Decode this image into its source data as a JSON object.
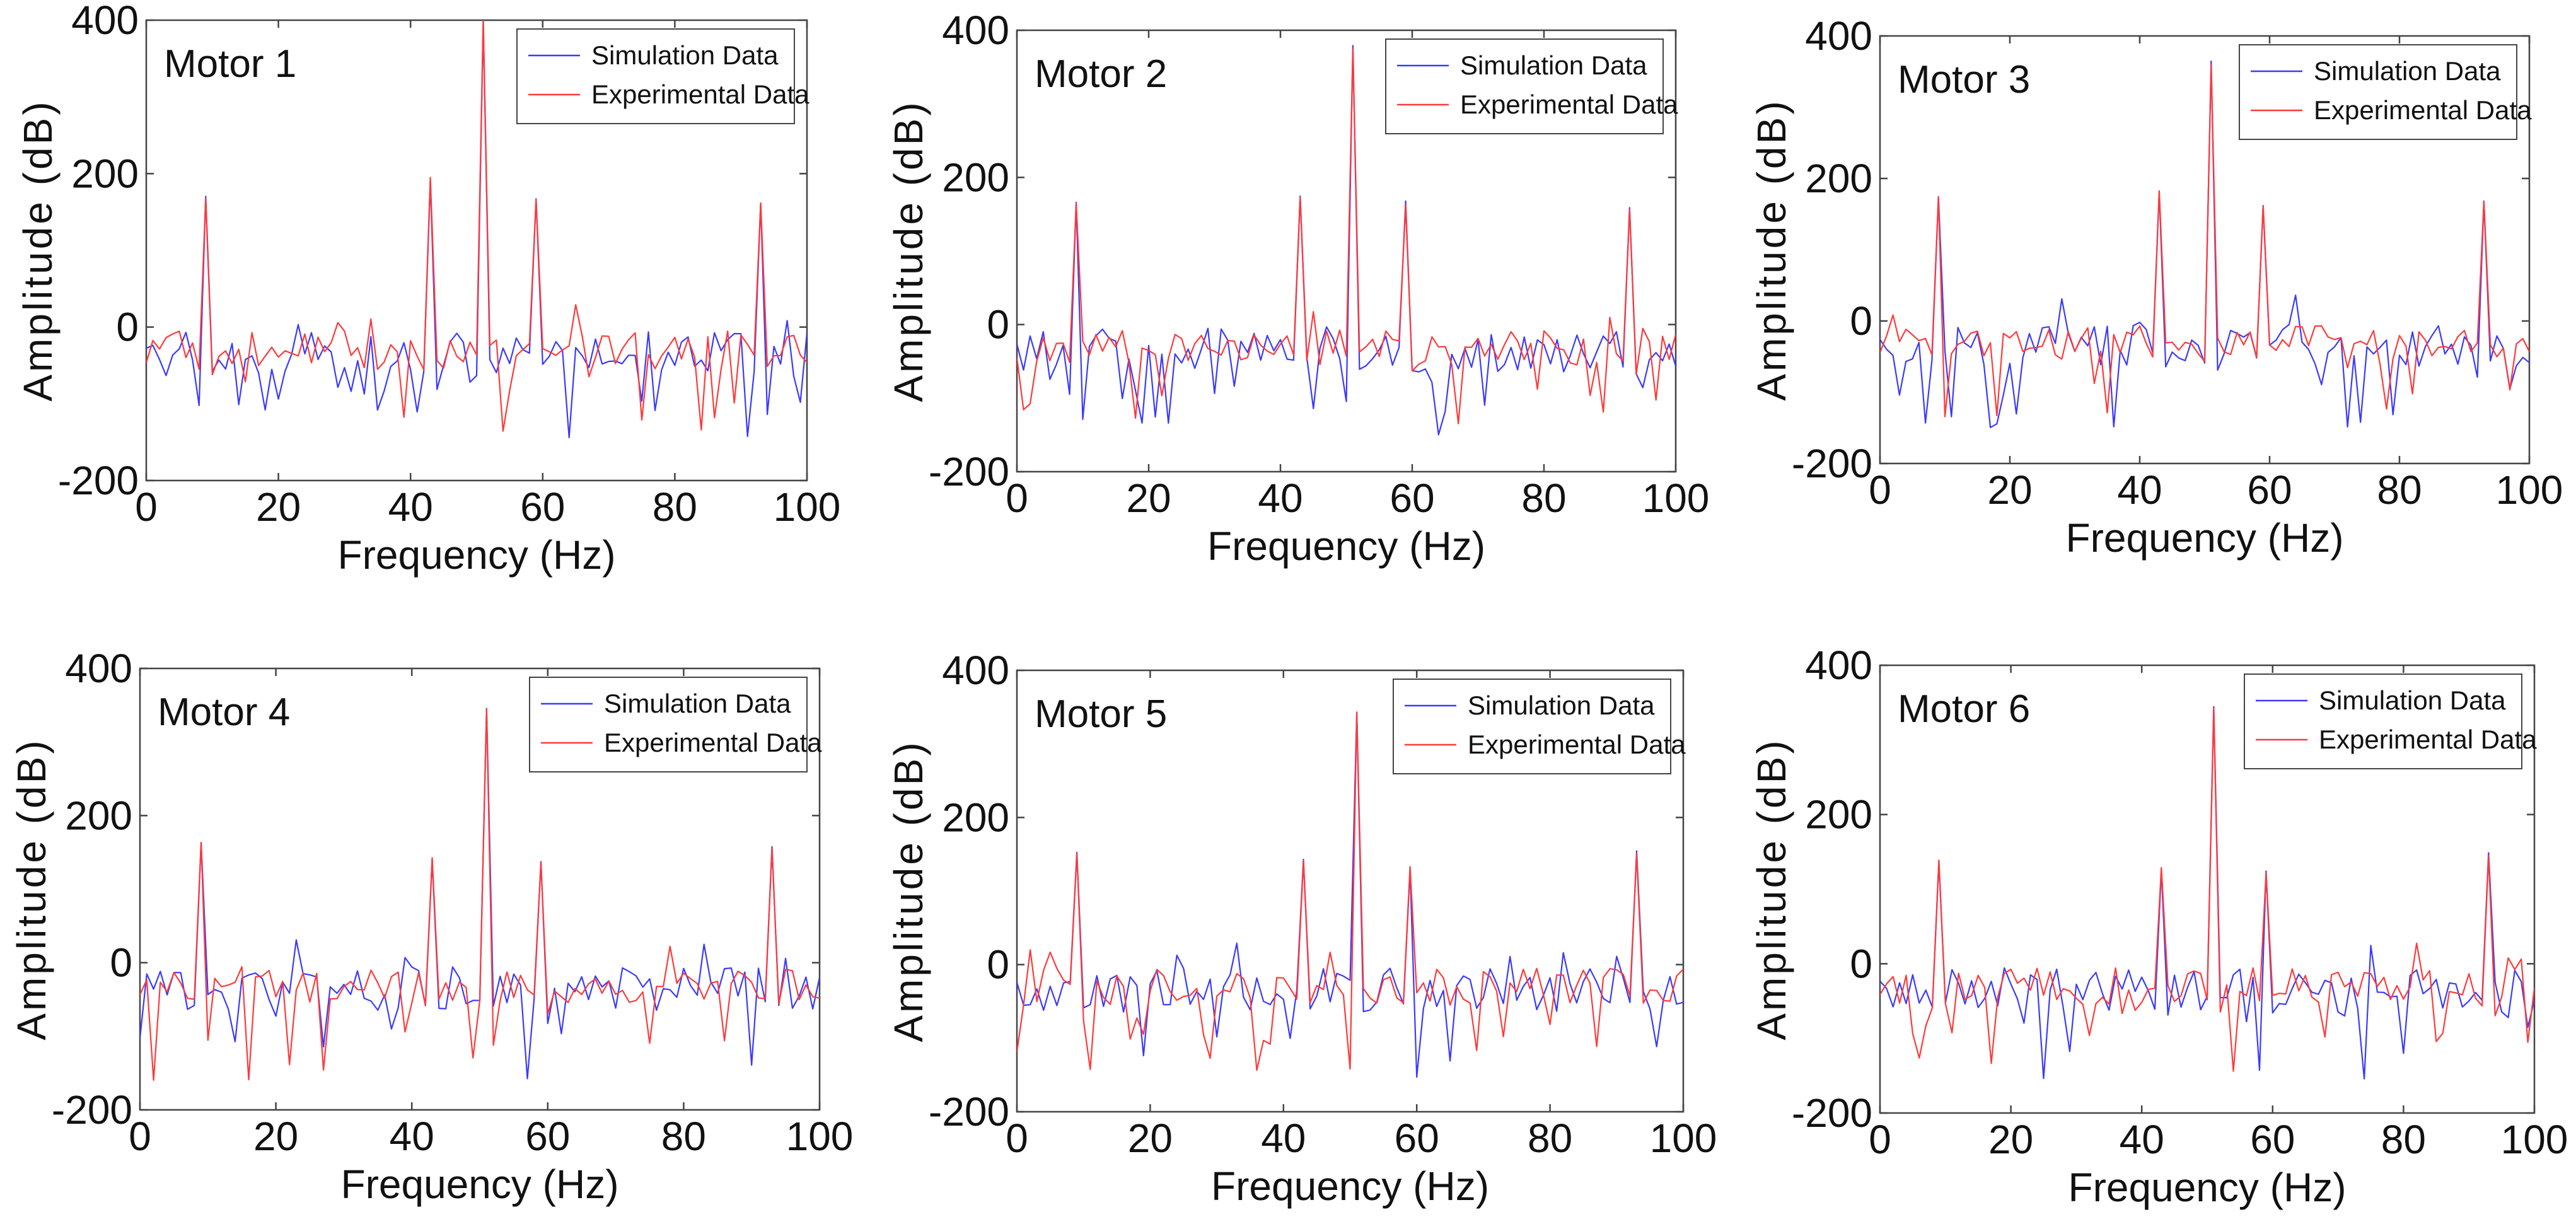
{
  "colors": {
    "simulation": "#3a3aff",
    "experimental": "#ff3a3a"
  },
  "chart_data": [
    {
      "type": "line",
      "title": "Motor 1",
      "xlabel": "Frequency (Hz)",
      "ylabel": "Amplitude (dB)",
      "xlim": [
        0,
        100
      ],
      "ylim": [
        -200,
        400
      ],
      "xticks": [
        "0",
        "20",
        "40",
        "60",
        "80",
        "100"
      ],
      "yticks": [
        "-200",
        "0",
        "200",
        "400"
      ],
      "legend": [
        "Simulation Data",
        "Experimental Data"
      ],
      "legend_position": "top-right",
      "peaks": [
        [
          9,
          172
        ],
        [
          43,
          196
        ],
        [
          51,
          400
        ],
        [
          59,
          172
        ],
        [
          93,
          162
        ]
      ]
    },
    {
      "type": "line",
      "title": "Motor 2",
      "xlabel": "Frequency (Hz)",
      "ylabel": "Amplitude (dB)",
      "xlim": [
        0,
        100
      ],
      "ylim": [
        -200,
        400
      ],
      "xticks": [
        "0",
        "20",
        "40",
        "60",
        "80",
        "100"
      ],
      "yticks": [
        "-200",
        "0",
        "200",
        "400"
      ],
      "legend": [
        "Simulation Data",
        "Experimental Data"
      ],
      "legend_position": "top-right",
      "peaks": [
        [
          9,
          168
        ],
        [
          43,
          178
        ],
        [
          51,
          380
        ],
        [
          59,
          168
        ],
        [
          93,
          160
        ]
      ]
    },
    {
      "type": "line",
      "title": "Motor 3",
      "xlabel": "Frequency (Hz)",
      "ylabel": "Amplitude (dB)",
      "xlim": [
        0,
        100
      ],
      "ylim": [
        -200,
        400
      ],
      "xticks": [
        "0",
        "20",
        "40",
        "60",
        "80",
        "100"
      ],
      "yticks": [
        "-200",
        "0",
        "200",
        "400"
      ],
      "legend": [
        "Simulation Data",
        "Experimental Data"
      ],
      "legend_position": "top-right",
      "peaks": [
        [
          9,
          175
        ],
        [
          43,
          185
        ],
        [
          51,
          365
        ],
        [
          59,
          165
        ],
        [
          93,
          172
        ]
      ]
    },
    {
      "type": "line",
      "title": "Motor 4",
      "xlabel": "Frequency (Hz)",
      "ylabel": "Amplitude (dB)",
      "xlim": [
        0,
        100
      ],
      "ylim": [
        -200,
        400
      ],
      "xticks": [
        "0",
        "20",
        "40",
        "60",
        "80",
        "100"
      ],
      "yticks": [
        "-200",
        "0",
        "200",
        "400"
      ],
      "legend": [
        "Simulation Data",
        "Experimental Data"
      ],
      "legend_position": "top-right",
      "peaks": [
        [
          9,
          168
        ],
        [
          43,
          145
        ],
        [
          51,
          350
        ],
        [
          59,
          140
        ],
        [
          93,
          160
        ]
      ]
    },
    {
      "type": "line",
      "title": "Motor 5",
      "xlabel": "Frequency (Hz)",
      "ylabel": "Amplitude (dB)",
      "xlim": [
        0,
        100
      ],
      "ylim": [
        -200,
        400
      ],
      "xticks": [
        "0",
        "20",
        "40",
        "60",
        "80",
        "100"
      ],
      "yticks": [
        "-200",
        "0",
        "200",
        "400"
      ],
      "legend": [
        "Simulation Data",
        "Experimental Data"
      ],
      "legend_position": "top-right",
      "peaks": [
        [
          9,
          155
        ],
        [
          43,
          145
        ],
        [
          51,
          348
        ],
        [
          59,
          135
        ],
        [
          93,
          155
        ]
      ]
    },
    {
      "type": "line",
      "title": "Motor 6",
      "xlabel": "Frequency (Hz)",
      "ylabel": "Amplitude (dB)",
      "xlim": [
        0,
        100
      ],
      "ylim": [
        -200,
        400
      ],
      "xticks": [
        "0",
        "20",
        "40",
        "60",
        "80",
        "100"
      ],
      "yticks": [
        "-200",
        "0",
        "200",
        "400"
      ],
      "legend": [
        "Simulation Data",
        "Experimental Data"
      ],
      "legend_position": "top-right",
      "peaks": [
        [
          9,
          140
        ],
        [
          43,
          130
        ],
        [
          51,
          345
        ],
        [
          59,
          125
        ],
        [
          93,
          150
        ]
      ]
    }
  ]
}
